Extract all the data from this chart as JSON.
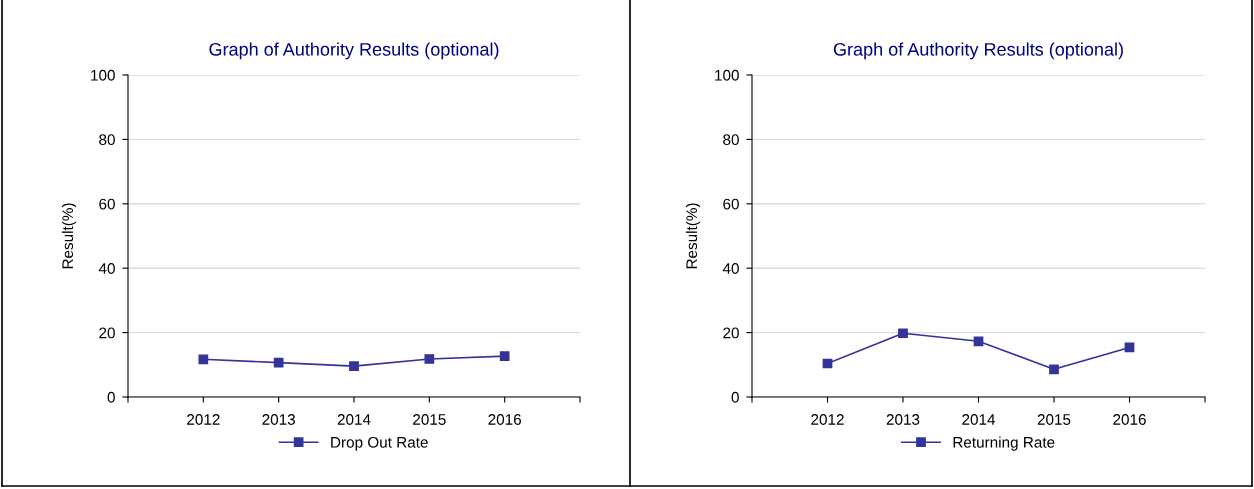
{
  "chart_data": [
    {
      "type": "line",
      "title": "Graph of Authority Results (optional)",
      "ylabel": "Result(%)",
      "categories": [
        "2012",
        "2013",
        "2014",
        "2015",
        "2016"
      ],
      "series": [
        {
          "name": "Drop Out Rate",
          "color": "#333399",
          "values": [
            11.7,
            10.7,
            9.6,
            11.8,
            12.7
          ]
        }
      ],
      "ylim": [
        0,
        100
      ],
      "yticks": [
        0,
        20,
        40,
        60,
        80,
        100
      ],
      "grid": "y",
      "legend": "bottom",
      "marker": "square",
      "line_style": "solid"
    },
    {
      "type": "line",
      "title": "Graph of Authority Results (optional)",
      "ylabel": "Result(%)",
      "categories": [
        "2012",
        "2013",
        "2014",
        "2015",
        "2016"
      ],
      "series": [
        {
          "name": "Returning Rate",
          "color": "#333399",
          "values": [
            10.4,
            19.8,
            17.3,
            8.6,
            15.4
          ]
        }
      ],
      "ylim": [
        0,
        100
      ],
      "yticks": [
        0,
        20,
        40,
        60,
        80,
        100
      ],
      "grid": "y",
      "legend": "bottom",
      "marker": "square",
      "line_style": "solid"
    }
  ]
}
